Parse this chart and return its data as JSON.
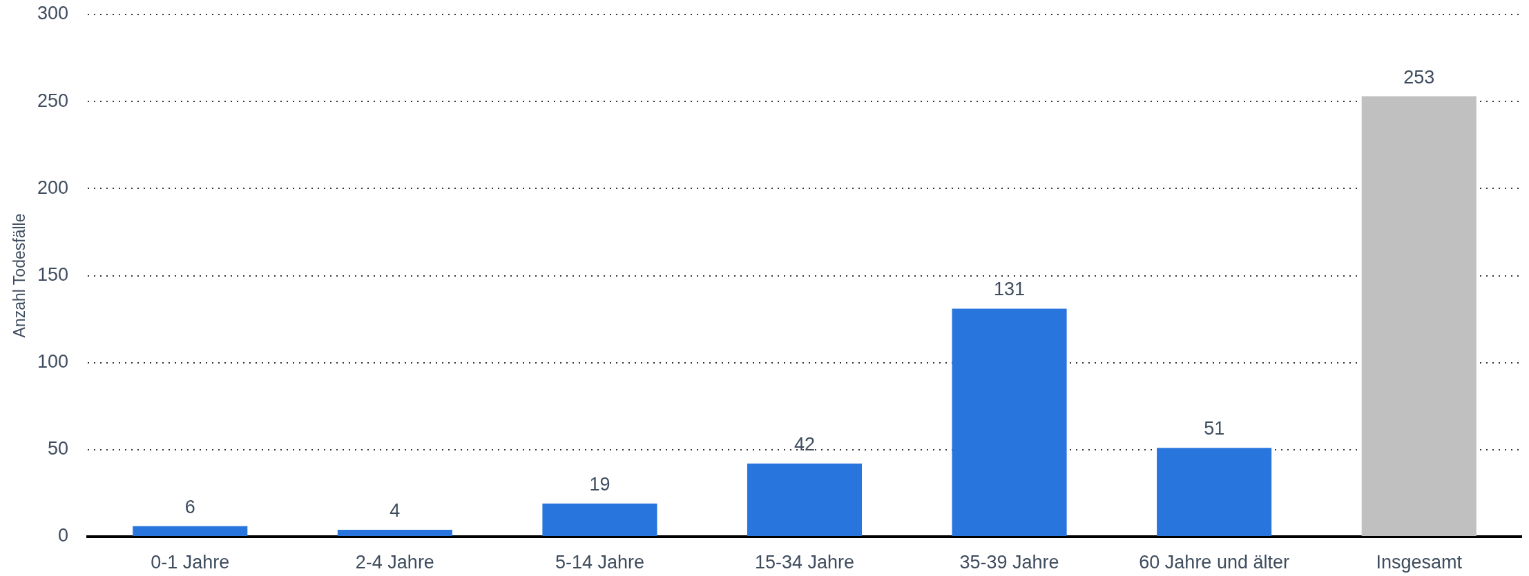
{
  "chart_data": {
    "type": "bar",
    "ylabel": "Anzahl Todesfälle",
    "categories": [
      "0-1 Jahre",
      "2-4 Jahre",
      "5-14 Jahre",
      "15-34 Jahre",
      "35-39 Jahre",
      "60 Jahre und älter",
      "Insgesamt"
    ],
    "values": [
      6,
      4,
      19,
      42,
      131,
      51,
      253
    ],
    "colors": [
      "#2876dd",
      "#2876dd",
      "#2876dd",
      "#2876dd",
      "#2876dd",
      "#2876dd",
      "#c0c0c0"
    ],
    "ylim": [
      0,
      300
    ],
    "yticks": [
      0,
      50,
      100,
      150,
      200,
      250,
      300
    ],
    "grid": "y",
    "data_labels": true
  }
}
